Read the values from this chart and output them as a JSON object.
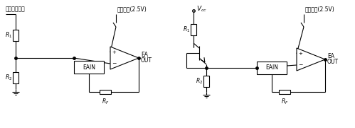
{
  "bg_color": "#ffffff",
  "line_color": "#000000",
  "figsize": [
    4.99,
    1.81
  ],
  "dpi": 100,
  "left_label_top": "来自检测电压",
  "left_label_ref": "基准电压(2.5V)",
  "right_label_top": "V_{cc}",
  "right_label_ref": "基准电压(2.5V)",
  "R1": "R_1",
  "R2": "R_2",
  "RF": "R_F",
  "EAIN": "EAIN",
  "EA": "EA",
  "OUT": "OUT"
}
